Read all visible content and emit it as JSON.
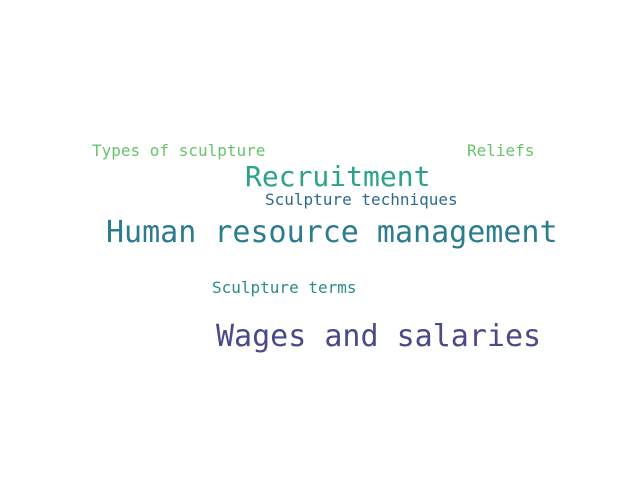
{
  "words": [
    {
      "id": "w-hrm",
      "text": "Human resource management",
      "color": "#2b7c8e"
    },
    {
      "id": "w-wages",
      "text": "Wages and salaries",
      "color": "#4a4a8a"
    },
    {
      "id": "w-recruitment",
      "text": "Recruitment",
      "color": "#2aa38a"
    },
    {
      "id": "w-techniques",
      "text": "Sculpture techniques",
      "color": "#2e6a8e"
    },
    {
      "id": "w-terms",
      "text": "Sculpture terms",
      "color": "#2b8c8c"
    },
    {
      "id": "w-types",
      "text": "Types of sculpture",
      "color": "#67c46c"
    },
    {
      "id": "w-reliefs",
      "text": "Reliefs",
      "color": "#67c46c"
    }
  ]
}
